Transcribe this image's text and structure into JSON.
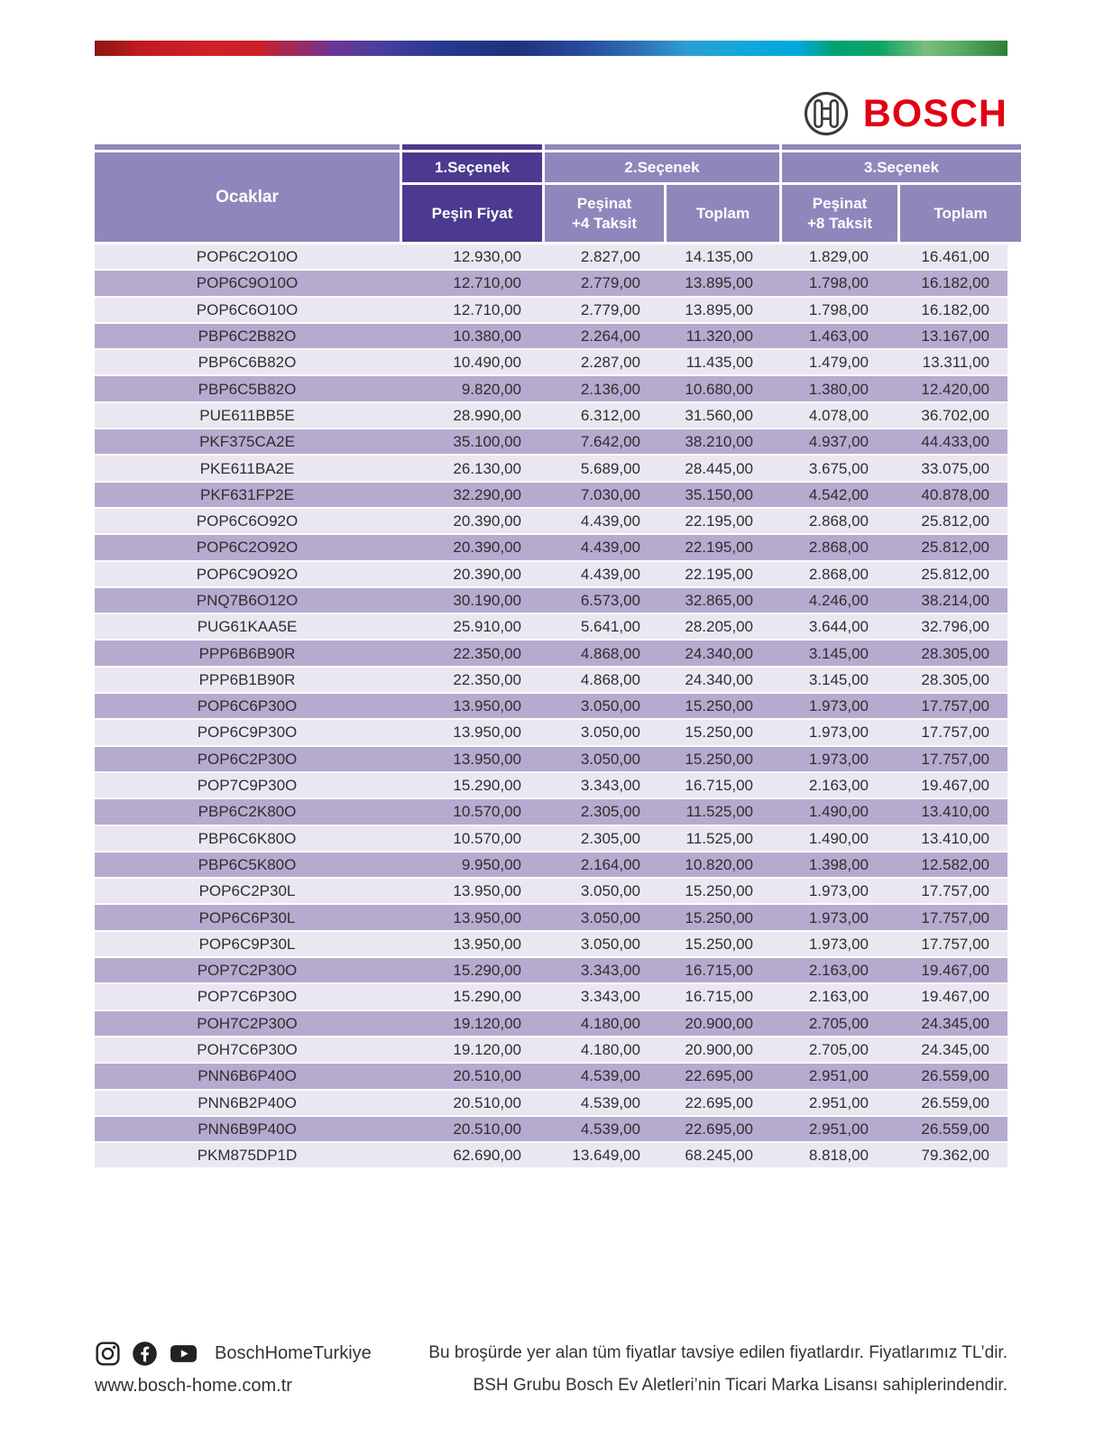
{
  "brand": {
    "name": "BOSCH",
    "bosch_red": "#e20015",
    "supergraphic_stops": [
      "#8c1711 0%",
      "#c01b20 5%",
      "#d02127 13%",
      "#cb2027 18%",
      "#6f3494 26%",
      "#4a3f9e 31%",
      "#27398f 38%",
      "#20317e 46%",
      "#27499a 53%",
      "#2e6db2 59%",
      "#2e9ed2 65%",
      "#12a7da 71%",
      "#00a9dc 77%",
      "#00a273 81%",
      "#0da466 86%",
      "#7abd7d 91%",
      "#58a963 95%",
      "#2d8038 100%"
    ]
  },
  "colors": {
    "header_purple": "#9186bc",
    "header_dark_purple": "#4b3a90",
    "row_light": "#eae7f2",
    "row_dark": "#b5abcf"
  },
  "table": {
    "category_label": "Ocaklar",
    "groups": {
      "g1": "1.Seçenek",
      "g2": "2.Seçenek",
      "g3": "3.Seçenek"
    },
    "columns": {
      "c1": "Peşin Fiyat",
      "c2": "Peşinat\n+4 Taksit",
      "c3": "Toplam",
      "c4": "Peşinat\n+8 Taksit",
      "c5": "Toplam"
    },
    "rows": [
      {
        "model": "POP6C2O10O",
        "values": [
          "12.930,00",
          "2.827,00",
          "14.135,00",
          "1.829,00",
          "16.461,00"
        ]
      },
      {
        "model": "POP6C9O10O",
        "values": [
          "12.710,00",
          "2.779,00",
          "13.895,00",
          "1.798,00",
          "16.182,00"
        ]
      },
      {
        "model": "POP6C6O10O",
        "values": [
          "12.710,00",
          "2.779,00",
          "13.895,00",
          "1.798,00",
          "16.182,00"
        ]
      },
      {
        "model": "PBP6C2B82O",
        "values": [
          "10.380,00",
          "2.264,00",
          "11.320,00",
          "1.463,00",
          "13.167,00"
        ]
      },
      {
        "model": "PBP6C6B82O",
        "values": [
          "10.490,00",
          "2.287,00",
          "11.435,00",
          "1.479,00",
          "13.311,00"
        ]
      },
      {
        "model": "PBP6C5B82O",
        "values": [
          "9.820,00",
          "2.136,00",
          "10.680,00",
          "1.380,00",
          "12.420,00"
        ]
      },
      {
        "model": "PUE611BB5E",
        "values": [
          "28.990,00",
          "6.312,00",
          "31.560,00",
          "4.078,00",
          "36.702,00"
        ]
      },
      {
        "model": "PKF375CA2E",
        "values": [
          "35.100,00",
          "7.642,00",
          "38.210,00",
          "4.937,00",
          "44.433,00"
        ]
      },
      {
        "model": "PKE611BA2E",
        "values": [
          "26.130,00",
          "5.689,00",
          "28.445,00",
          "3.675,00",
          "33.075,00"
        ]
      },
      {
        "model": "PKF631FP2E",
        "values": [
          "32.290,00",
          "7.030,00",
          "35.150,00",
          "4.542,00",
          "40.878,00"
        ]
      },
      {
        "model": "POP6C6O92O",
        "values": [
          "20.390,00",
          "4.439,00",
          "22.195,00",
          "2.868,00",
          "25.812,00"
        ]
      },
      {
        "model": "POP6C2O92O",
        "values": [
          "20.390,00",
          "4.439,00",
          "22.195,00",
          "2.868,00",
          "25.812,00"
        ]
      },
      {
        "model": "POP6C9O92O",
        "values": [
          "20.390,00",
          "4.439,00",
          "22.195,00",
          "2.868,00",
          "25.812,00"
        ]
      },
      {
        "model": "PNQ7B6O12O",
        "values": [
          "30.190,00",
          "6.573,00",
          "32.865,00",
          "4.246,00",
          "38.214,00"
        ]
      },
      {
        "model": "PUG61KAA5E",
        "values": [
          "25.910,00",
          "5.641,00",
          "28.205,00",
          "3.644,00",
          "32.796,00"
        ]
      },
      {
        "model": "PPP6B6B90R",
        "values": [
          "22.350,00",
          "4.868,00",
          "24.340,00",
          "3.145,00",
          "28.305,00"
        ]
      },
      {
        "model": "PPP6B1B90R",
        "values": [
          "22.350,00",
          "4.868,00",
          "24.340,00",
          "3.145,00",
          "28.305,00"
        ]
      },
      {
        "model": "POP6C6P30O",
        "values": [
          "13.950,00",
          "3.050,00",
          "15.250,00",
          "1.973,00",
          "17.757,00"
        ]
      },
      {
        "model": "POP6C9P30O",
        "values": [
          "13.950,00",
          "3.050,00",
          "15.250,00",
          "1.973,00",
          "17.757,00"
        ]
      },
      {
        "model": "POP6C2P30O",
        "values": [
          "13.950,00",
          "3.050,00",
          "15.250,00",
          "1.973,00",
          "17.757,00"
        ]
      },
      {
        "model": "POP7C9P30O",
        "values": [
          "15.290,00",
          "3.343,00",
          "16.715,00",
          "2.163,00",
          "19.467,00"
        ]
      },
      {
        "model": "PBP6C2K80O",
        "values": [
          "10.570,00",
          "2.305,00",
          "11.525,00",
          "1.490,00",
          "13.410,00"
        ]
      },
      {
        "model": "PBP6C6K80O",
        "values": [
          "10.570,00",
          "2.305,00",
          "11.525,00",
          "1.490,00",
          "13.410,00"
        ]
      },
      {
        "model": "PBP6C5K80O",
        "values": [
          "9.950,00",
          "2.164,00",
          "10.820,00",
          "1.398,00",
          "12.582,00"
        ]
      },
      {
        "model": "POP6C2P30L",
        "values": [
          "13.950,00",
          "3.050,00",
          "15.250,00",
          "1.973,00",
          "17.757,00"
        ]
      },
      {
        "model": "POP6C6P30L",
        "values": [
          "13.950,00",
          "3.050,00",
          "15.250,00",
          "1.973,00",
          "17.757,00"
        ]
      },
      {
        "model": "POP6C9P30L",
        "values": [
          "13.950,00",
          "3.050,00",
          "15.250,00",
          "1.973,00",
          "17.757,00"
        ]
      },
      {
        "model": "POP7C2P30O",
        "values": [
          "15.290,00",
          "3.343,00",
          "16.715,00",
          "2.163,00",
          "19.467,00"
        ]
      },
      {
        "model": "POP7C6P30O",
        "values": [
          "15.290,00",
          "3.343,00",
          "16.715,00",
          "2.163,00",
          "19.467,00"
        ]
      },
      {
        "model": "POH7C2P30O",
        "values": [
          "19.120,00",
          "4.180,00",
          "20.900,00",
          "2.705,00",
          "24.345,00"
        ]
      },
      {
        "model": "POH7C6P30O",
        "values": [
          "19.120,00",
          "4.180,00",
          "20.900,00",
          "2.705,00",
          "24.345,00"
        ]
      },
      {
        "model": "PNN6B6P40O",
        "values": [
          "20.510,00",
          "4.539,00",
          "22.695,00",
          "2.951,00",
          "26.559,00"
        ]
      },
      {
        "model": "PNN6B2P40O",
        "values": [
          "20.510,00",
          "4.539,00",
          "22.695,00",
          "2.951,00",
          "26.559,00"
        ]
      },
      {
        "model": "PNN6B9P40O",
        "values": [
          "20.510,00",
          "4.539,00",
          "22.695,00",
          "2.951,00",
          "26.559,00"
        ]
      },
      {
        "model": "PKM875DP1D",
        "values": [
          "62.690,00",
          "13.649,00",
          "68.245,00",
          "8.818,00",
          "79.362,00"
        ]
      }
    ]
  },
  "footer": {
    "social_icons": [
      "instagram-icon",
      "facebook-icon",
      "youtube-icon"
    ],
    "social_handle": "BoschHomeTurkiye",
    "website": "www.bosch-home.com.tr",
    "note_line1": "Bu broşürde yer alan tüm fiyatlar tavsiye edilen fiyatlardır. Fiyatlarımız TL’dir.",
    "note_line2": "BSH Grubu Bosch Ev Aletleri’nin Ticari Marka Lisansı sahiplerindendir."
  }
}
